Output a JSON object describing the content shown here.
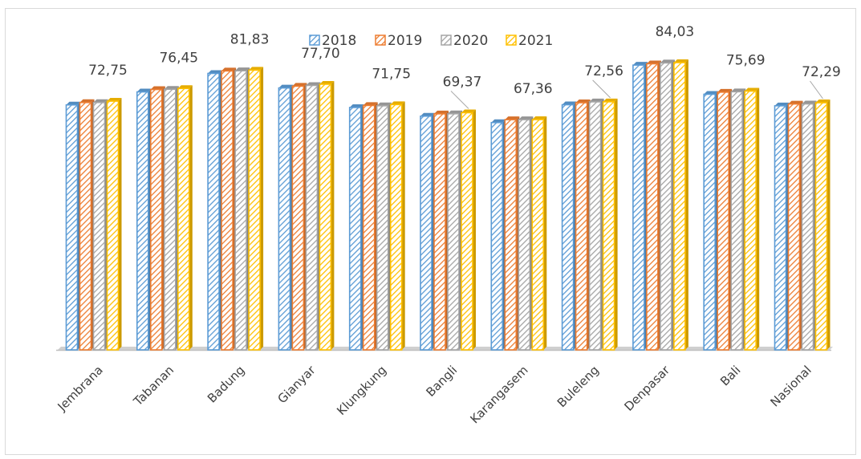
{
  "chart_data": {
    "type": "bar",
    "title": "",
    "xlabel": "",
    "ylabel": "",
    "categories": [
      "Jembrana",
      "Tabanan",
      "Badung",
      "Gianyar",
      "Klungkung",
      "Bangli",
      "Karangasem",
      "Buleleng",
      "Denpasar",
      "Bali",
      "Nasional"
    ],
    "series": [
      {
        "name": "2018",
        "color": "#5B9BD5",
        "values": [
          71.65,
          75.45,
          80.87,
          76.61,
          70.9,
          68.36,
          66.49,
          71.7,
          83.3,
          74.77,
          71.39
        ]
      },
      {
        "name": "2019",
        "color": "#ED7D31",
        "values": [
          72.35,
          76.16,
          81.59,
          77.14,
          71.49,
          69.04,
          67.34,
          72.3,
          83.68,
          75.38,
          71.92
        ]
      },
      {
        "name": "2020",
        "color": "#A5A5A5",
        "values": [
          72.36,
          76.24,
          81.64,
          77.35,
          71.4,
          69.06,
          67.35,
          72.55,
          83.93,
          75.5,
          71.94
        ]
      },
      {
        "name": "2021",
        "color": "#FFC000",
        "values": [
          72.75,
          76.45,
          81.83,
          77.7,
          71.75,
          69.37,
          67.36,
          72.56,
          84.03,
          75.69,
          72.29
        ]
      }
    ],
    "data_labels": [
      "72,75",
      "76,45",
      "81,83",
      "77,70",
      "71,75",
      "69,37",
      "67,36",
      "72,56",
      "84,03",
      "75,69",
      "72,29"
    ],
    "legend_position": "top",
    "grid": false
  }
}
